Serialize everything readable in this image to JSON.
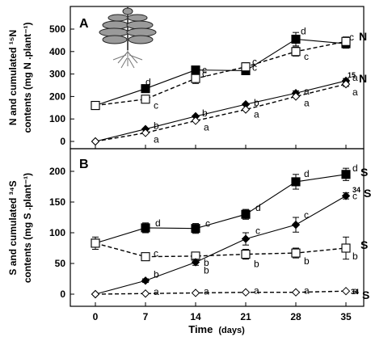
{
  "chart_data": [
    {
      "type": "line",
      "panel": "A",
      "ylabel_lines": [
        "N and cumulated ¹⁵N",
        "contents (mg N .plant⁻¹)"
      ],
      "ylim": [
        0,
        500
      ],
      "yticks": [
        0,
        100,
        200,
        300,
        400,
        500
      ],
      "x": [
        0,
        7,
        14,
        21,
        28,
        35
      ],
      "series": [
        {
          "name": "N",
          "marker": "square-filled",
          "dash": false,
          "values": [
            160,
            235,
            318,
            315,
            455,
            435
          ],
          "errors": [
            0,
            0,
            0,
            18,
            30,
            20
          ],
          "letters": [
            "",
            "d",
            "c",
            "c",
            "d",
            "c"
          ]
        },
        {
          "name": "N-open",
          "marker": "square-open",
          "dash": true,
          "values": [
            160,
            188,
            280,
            332,
            400,
            445
          ],
          "errors": [
            0,
            0,
            22,
            18,
            20,
            20
          ],
          "letters": [
            "",
            "c",
            "c",
            "c",
            "c",
            ""
          ]
        },
        {
          "name": "15N",
          "marker": "diamond-filled",
          "dash": false,
          "values": [
            0,
            55,
            112,
            165,
            215,
            270
          ],
          "errors": [
            0,
            0,
            0,
            0,
            10,
            10
          ],
          "letters": [
            "",
            "b",
            "b",
            "b",
            "a",
            "a"
          ]
        },
        {
          "name": "15N-open",
          "marker": "diamond-open",
          "dash": true,
          "values": [
            0,
            38,
            92,
            142,
            200,
            255
          ],
          "errors": [
            0,
            0,
            0,
            0,
            0,
            10
          ],
          "letters": [
            "",
            "a",
            "a",
            "a",
            "a",
            "a"
          ]
        }
      ],
      "end_labels": {
        "main": "N",
        "iso_sup": "15",
        "iso": "N"
      }
    },
    {
      "type": "line",
      "panel": "B",
      "ylabel_lines": [
        "S and cumulated ³⁴S",
        "contents (mg S .plant⁻¹)"
      ],
      "ylim": [
        0,
        200
      ],
      "yticks": [
        0,
        50,
        100,
        150,
        200
      ],
      "x": [
        0,
        7,
        14,
        21,
        28,
        35
      ],
      "xlabel": "Time",
      "xlabel_unit": "(days)",
      "series": [
        {
          "name": "S",
          "marker": "square-filled",
          "dash": false,
          "values": [
            83,
            108,
            107,
            130,
            183,
            195
          ],
          "errors": [
            10,
            8,
            8,
            8,
            12,
            10
          ],
          "letters": [
            "",
            "d",
            "c",
            "d",
            "d",
            "d"
          ]
        },
        {
          "name": "S-open",
          "marker": "square-open",
          "dash": true,
          "values": [
            83,
            61,
            62,
            65,
            67,
            75
          ],
          "errors": [
            0,
            5,
            5,
            8,
            8,
            18
          ],
          "letters": [
            "",
            "c",
            "b",
            "b",
            "b",
            "b"
          ]
        },
        {
          "name": "34S",
          "marker": "diamond-filled",
          "dash": false,
          "values": [
            0,
            22,
            52,
            90,
            113,
            160
          ],
          "errors": [
            0,
            3,
            5,
            10,
            12,
            5
          ],
          "letters": [
            "",
            "b",
            "b",
            "c",
            "c",
            "c"
          ]
        },
        {
          "name": "34S-open",
          "marker": "diamond-open",
          "dash": true,
          "values": [
            0,
            1,
            2,
            3,
            3,
            5
          ],
          "errors": [
            0,
            0,
            0,
            0,
            0,
            0
          ],
          "letters": [
            "",
            "a",
            "a",
            "a",
            "a",
            "a"
          ]
        }
      ],
      "end_labels": {
        "main1": "S",
        "iso_sup": "34",
        "iso": "S",
        "main2": "S",
        "iso2_sup": "34",
        "iso2": "S"
      }
    }
  ],
  "panel_a_letter": "A",
  "panel_b_letter": "B",
  "xtick_labels": [
    "0",
    "7",
    "14",
    "21",
    "28",
    "35"
  ],
  "plant_icon_name": "plant-illustration"
}
